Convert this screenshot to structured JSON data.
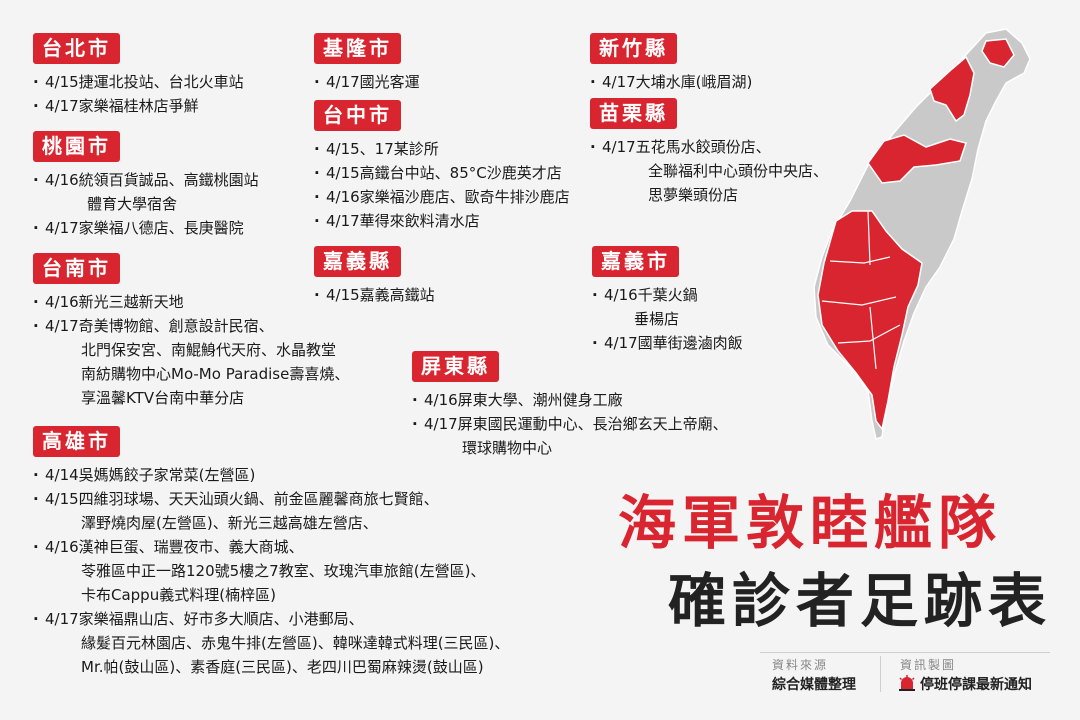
{
  "sections": {
    "taipei": {
      "title": "台北市",
      "items": [
        "4/15捷運北投站、台北火車站",
        "4/17家樂福桂林店爭鮮"
      ]
    },
    "taoyuan": {
      "title": "桃園市",
      "items": [
        "4/16統領百貨誠品、高鐵桃園站",
        "體育大學宿舍",
        "4/17家樂福八德店、長庚醫院"
      ]
    },
    "tainan": {
      "title": "台南市",
      "items": [
        "4/16新光三越新天地",
        "4/17奇美博物館、創意設計民宿、",
        "北門保安宮、南鯤鯓代天府、水晶教堂",
        "南紡購物中心Mo-Mo Paradise壽喜燒、",
        "享溫馨KTV台南中華分店"
      ]
    },
    "kaohsiung": {
      "title": "高雄市",
      "items": [
        "4/14吳媽媽餃子家常菜(左營區)",
        "4/15四維羽球場、天天汕頭火鍋、前金區麗馨商旅七賢館、",
        "澤野燒肉屋(左營區)、新光三越高雄左營店、",
        "4/16漢神巨蛋、瑞豐夜市、義大商城、",
        "苓雅區中正一路120號5樓之7教室、玫瑰汽車旅館(左營區)、",
        "卡布Cappu義式料理(楠梓區)",
        "4/17家樂福鼎山店、好市多大順店、小港郵局、",
        "緣髮百元林園店、赤鬼牛排(左營區)、韓咪達韓式料理(三民區)、",
        "Mr.帕(鼓山區)、素香庭(三民區)、老四川巴蜀麻辣燙(鼓山區)"
      ]
    },
    "keelung": {
      "title": "基隆市",
      "items": [
        "4/17國光客運"
      ]
    },
    "taichung": {
      "title": "台中市",
      "items": [
        "4/15、17某診所",
        "4/15高鐵台中站、85°C沙鹿英才店",
        "4/16家樂福沙鹿店、歐奇牛排沙鹿店",
        "4/17華得來飲料清水店"
      ]
    },
    "chiayi_county": {
      "title": "嘉義縣",
      "items": [
        "4/15嘉義高鐵站"
      ]
    },
    "pingtung": {
      "title": "屏東縣",
      "items": [
        "4/16屏東大學、潮州健身工廠",
        "4/17屏東國民運動中心、長治鄉玄天上帝廟、",
        "環球購物中心"
      ]
    },
    "hsinchu_county": {
      "title": "新竹縣",
      "items": [
        "4/17大埔水庫(峨眉湖)"
      ]
    },
    "miaoli": {
      "title": "苗栗縣",
      "items": [
        "4/17五花馬水餃頭份店、",
        "全聯福利中心頭份中央店、",
        "思夢樂頭份店"
      ]
    },
    "chiayi_city": {
      "title": "嘉義市",
      "items": [
        "4/16千葉火鍋",
        "垂楊店",
        "4/17國華街邊滷肉飯"
      ]
    }
  },
  "headline": {
    "line1": "海軍敦睦艦隊",
    "line2": "確診者足跡表"
  },
  "credits": {
    "source_label": "資料來源",
    "source_value": "綜合媒體整理",
    "made_label": "資訊製圖",
    "made_value": "停班停課最新通知"
  },
  "colors": {
    "accent": "#d9252f",
    "map_gray": "#c9c9c9",
    "background": "#f4f4f4"
  }
}
